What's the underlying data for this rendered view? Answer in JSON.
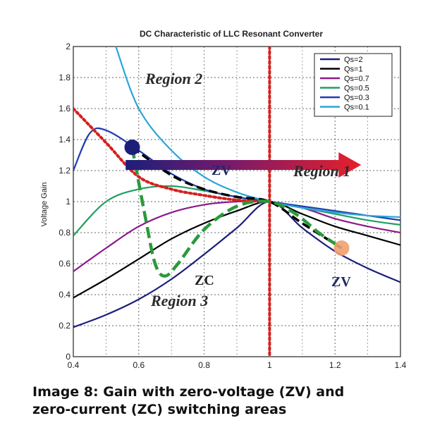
{
  "caption": {
    "line1": "Image 8: Gain with zero-voltage (ZV) and",
    "line2": "zero-current (ZC) switching areas"
  },
  "chart_data": {
    "type": "line",
    "title": "DC Characteristic of LLC Resonant Converter",
    "xlabel": "",
    "ylabel": "Voltage Gain",
    "xlim": [
      0.4,
      1.4
    ],
    "ylim": [
      0,
      2
    ],
    "xticks": [
      "0.4",
      "0.6",
      "0.8",
      "1",
      "1.2",
      "1.4"
    ],
    "yticks": [
      "0",
      "0.2",
      "0.4",
      "0.6",
      "0.8",
      "1",
      "1.2",
      "1.4",
      "1.6",
      "1.8",
      "2"
    ],
    "grid": true,
    "legend_position": "top-right",
    "series": [
      {
        "name": "Qs=2",
        "color": "#1c1f7a",
        "x": [
          0.4,
          0.5,
          0.6,
          0.7,
          0.8,
          0.9,
          1.0,
          1.1,
          1.2,
          1.3,
          1.4
        ],
        "y": [
          0.19,
          0.27,
          0.37,
          0.5,
          0.66,
          0.83,
          1.0,
          0.83,
          0.68,
          0.57,
          0.48
        ]
      },
      {
        "name": "Qs=1",
        "color": "#000000",
        "x": [
          0.4,
          0.5,
          0.6,
          0.7,
          0.8,
          0.9,
          1.0,
          1.1,
          1.2,
          1.3,
          1.4
        ],
        "y": [
          0.38,
          0.5,
          0.63,
          0.76,
          0.86,
          0.94,
          1.0,
          0.92,
          0.84,
          0.78,
          0.72
        ]
      },
      {
        "name": "Qs=0.7",
        "color": "#8b1a8b",
        "x": [
          0.4,
          0.5,
          0.6,
          0.7,
          0.8,
          0.9,
          1.0,
          1.1,
          1.2,
          1.3,
          1.4
        ],
        "y": [
          0.55,
          0.7,
          0.84,
          0.93,
          0.98,
          1.0,
          1.0,
          0.96,
          0.89,
          0.84,
          0.8
        ]
      },
      {
        "name": "Qs=0.5",
        "color": "#20a060",
        "x": [
          0.4,
          0.5,
          0.6,
          0.7,
          0.8,
          0.9,
          1.0,
          1.1,
          1.2,
          1.3,
          1.4
        ],
        "y": [
          0.78,
          1.0,
          1.08,
          1.1,
          1.07,
          1.03,
          1.0,
          0.96,
          0.92,
          0.88,
          0.85
        ]
      },
      {
        "name": "Qs=0.3",
        "color": "#1f3fae",
        "x": [
          0.4,
          0.45,
          0.5,
          0.6,
          0.7,
          0.8,
          0.9,
          1.0,
          1.1,
          1.2,
          1.3,
          1.4
        ],
        "y": [
          1.2,
          1.44,
          1.46,
          1.33,
          1.18,
          1.08,
          1.03,
          1.0,
          0.97,
          0.94,
          0.91,
          0.88
        ]
      },
      {
        "name": "Qs=0.1",
        "color": "#2aa5d8",
        "x": [
          0.53,
          0.6,
          0.7,
          0.8,
          0.9,
          1.0,
          1.1,
          1.2,
          1.3,
          1.4
        ],
        "y": [
          2.0,
          1.6,
          1.33,
          1.16,
          1.06,
          1.0,
          0.96,
          0.93,
          0.91,
          0.9
        ]
      }
    ],
    "annotations": {
      "region2": "Region 2",
      "region1": "Region 1",
      "region3": "Region 3",
      "zv_upper": "ZV",
      "zv_lower": "ZV",
      "zc": "ZC",
      "boundary_x": 1.0,
      "arrow": {
        "from": [
          0.56,
          1.4
        ],
        "to": [
          1.28,
          1.4
        ]
      },
      "peak_boundary_dashed": {
        "x": [
          0.58,
          0.62,
          0.65,
          0.68,
          0.72,
          0.8,
          0.9,
          1.0,
          1.08,
          1.15,
          1.22
        ],
        "y": [
          1.35,
          0.9,
          0.6,
          0.52,
          0.6,
          0.82,
          0.97,
          1.0,
          0.92,
          0.8,
          0.7
        ]
      },
      "peak_boundary_black": {
        "x": [
          0.58,
          0.7,
          0.8,
          0.9,
          1.0,
          1.1,
          1.22
        ],
        "y": [
          1.35,
          1.17,
          1.08,
          1.03,
          1.0,
          0.86,
          0.7
        ]
      },
      "red_dotted": {
        "x": [
          0.4,
          0.5,
          0.6,
          0.7,
          0.8,
          0.9,
          1.0
        ],
        "y": [
          1.6,
          1.38,
          1.16,
          1.08,
          1.04,
          1.01,
          1.0
        ]
      },
      "marker_navy": {
        "x": 0.58,
        "y": 1.35,
        "color": "#1c1f7a"
      },
      "marker_orange": {
        "x": 1.22,
        "y": 0.7,
        "color": "#f0a070"
      }
    }
  }
}
